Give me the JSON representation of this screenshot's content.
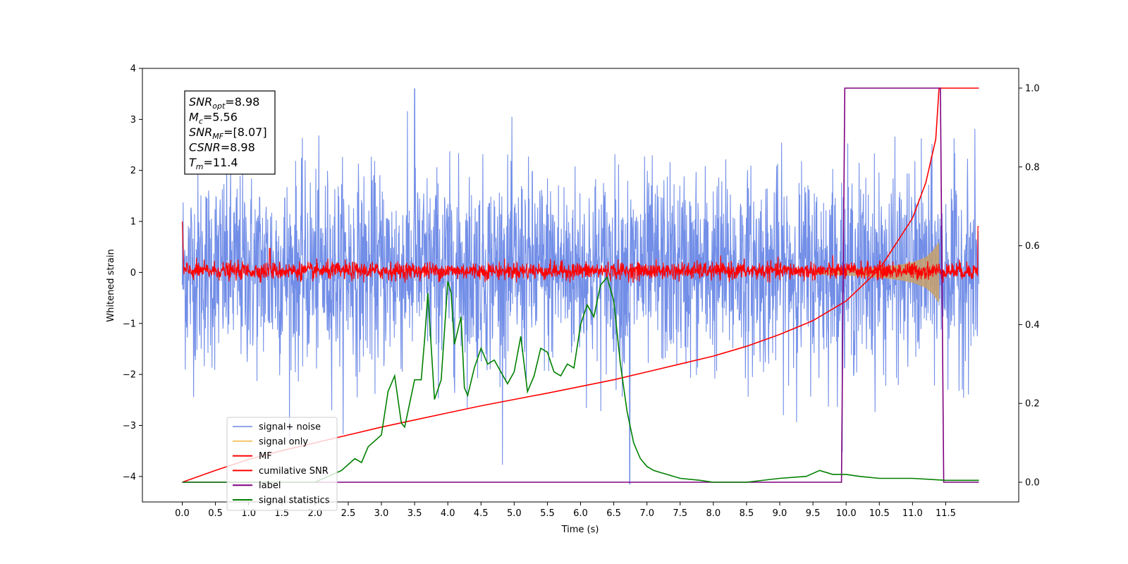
{
  "chart_data": {
    "type": "line",
    "xlabel": "Time (s)",
    "ylabel": "Whitened strain",
    "xlim": [
      -0.6,
      12.6
    ],
    "ylim": [
      -4.5,
      4.0
    ],
    "y2lim": [
      -0.05,
      1.05
    ],
    "x_ticks": [
      0.0,
      0.5,
      1.0,
      1.5,
      2.0,
      2.5,
      3.0,
      3.5,
      4.0,
      4.5,
      5.0,
      5.5,
      6.0,
      6.5,
      7.0,
      7.5,
      8.0,
      8.5,
      9.0,
      9.5,
      10.0,
      10.5,
      11.0,
      11.5
    ],
    "x_tick_labels": [
      "0.0",
      "0.5",
      "1.0",
      "1.5",
      "2.0",
      "2.5",
      "3.0",
      "3.5",
      "4.0",
      "4.5",
      "5.0",
      "5.5",
      "6.0",
      "6.5",
      "7.0",
      "7.5",
      "8.0",
      "8.5",
      "9.0",
      "9.5",
      "10.0",
      "10.5",
      "11.0",
      "11.5"
    ],
    "y_ticks": [
      4,
      3,
      2,
      1,
      0,
      -1,
      -2,
      -3,
      -4
    ],
    "y_tick_labels": [
      "4",
      "3",
      "2",
      "1",
      "0",
      "−1",
      "−2",
      "−3",
      "−4"
    ],
    "y2_ticks": [
      1.0,
      0.8,
      0.6,
      0.4,
      0.2,
      0.0
    ],
    "y2_tick_labels": [
      "1.0",
      "0.8",
      "0.6",
      "0.4",
      "0.2",
      "0.0"
    ],
    "legend_position": "lower-left",
    "series": [
      {
        "name": "signal+ noise",
        "axis": "left",
        "color": "#6a88e6",
        "description_values": {
          "x_range": [
            0.0,
            12.0
          ],
          "typical_range": [
            -2.0,
            2.2
          ],
          "max_excursion": 3.6,
          "min_excursion": -4.15
        }
      },
      {
        "name": "signal only",
        "axis": "left",
        "color": "#f5c56a",
        "envelope": {
          "x": [
            9.5,
            10.0,
            10.5,
            10.8,
            11.0,
            11.2,
            11.3,
            11.4
          ],
          "amplitude": [
            0.04,
            0.06,
            0.1,
            0.15,
            0.2,
            0.3,
            0.42,
            0.6
          ]
        }
      },
      {
        "name": "MF",
        "axis": "left",
        "color": "#ff0000",
        "description_values": {
          "x_range": [
            0.0,
            12.0
          ],
          "typical_range": [
            -0.2,
            0.25
          ],
          "start_value": 1.0,
          "end_value": 0.9,
          "peak": 0.47
        }
      },
      {
        "name": "cumilative SNR",
        "axis": "right",
        "color": "#ff0000",
        "x": [
          0.0,
          0.5,
          1.0,
          1.5,
          2.0,
          2.5,
          3.0,
          3.5,
          4.0,
          4.5,
          5.0,
          5.5,
          6.0,
          6.5,
          7.0,
          7.5,
          8.0,
          8.5,
          9.0,
          9.5,
          10.0,
          10.5,
          11.0,
          11.2,
          11.35,
          11.4,
          11.5,
          12.0
        ],
        "values": [
          0.0,
          0.03,
          0.058,
          0.08,
          0.1,
          0.12,
          0.14,
          0.158,
          0.176,
          0.194,
          0.21,
          0.226,
          0.243,
          0.26,
          0.28,
          0.3,
          0.32,
          0.345,
          0.375,
          0.41,
          0.46,
          0.54,
          0.67,
          0.76,
          0.87,
          1.0,
          1.0,
          1.0
        ]
      },
      {
        "name": "label",
        "axis": "right",
        "color": "#800080",
        "x": [
          0.0,
          9.93,
          9.98,
          11.42,
          11.47,
          12.0
        ],
        "values": [
          0.0,
          0.0,
          1.0,
          1.0,
          0.0,
          0.0
        ]
      },
      {
        "name": "signal statistics",
        "axis": "right",
        "color": "#008000",
        "x": [
          0.0,
          1.0,
          2.0,
          2.4,
          2.6,
          2.7,
          2.8,
          3.0,
          3.1,
          3.2,
          3.3,
          3.35,
          3.5,
          3.6,
          3.65,
          3.7,
          3.8,
          3.9,
          4.0,
          4.05,
          4.1,
          4.2,
          4.25,
          4.3,
          4.4,
          4.5,
          4.6,
          4.7,
          4.8,
          4.9,
          5.0,
          5.1,
          5.2,
          5.3,
          5.4,
          5.5,
          5.6,
          5.7,
          5.8,
          5.9,
          6.0,
          6.1,
          6.2,
          6.3,
          6.4,
          6.5,
          6.6,
          6.7,
          6.8,
          6.9,
          7.0,
          7.1,
          7.2,
          7.3,
          7.5,
          7.8,
          8.0,
          8.5,
          9.0,
          9.4,
          9.6,
          9.8,
          10.0,
          10.2,
          10.5,
          11.0,
          11.5,
          12.0
        ],
        "values": [
          0.0,
          0.0,
          0.0,
          0.03,
          0.06,
          0.05,
          0.09,
          0.12,
          0.23,
          0.27,
          0.15,
          0.14,
          0.26,
          0.26,
          0.36,
          0.48,
          0.21,
          0.26,
          0.51,
          0.48,
          0.35,
          0.42,
          0.24,
          0.22,
          0.29,
          0.34,
          0.3,
          0.31,
          0.28,
          0.25,
          0.28,
          0.37,
          0.23,
          0.27,
          0.34,
          0.33,
          0.28,
          0.27,
          0.3,
          0.29,
          0.4,
          0.45,
          0.42,
          0.5,
          0.52,
          0.46,
          0.3,
          0.18,
          0.1,
          0.06,
          0.04,
          0.03,
          0.025,
          0.02,
          0.01,
          0.005,
          0.0,
          0.0,
          0.01,
          0.015,
          0.03,
          0.02,
          0.02,
          0.015,
          0.01,
          0.01,
          0.005,
          0.005
        ]
      }
    ]
  },
  "annotation": {
    "lines": [
      {
        "sym": "SNR",
        "sub": "opt",
        "value": "=8.98"
      },
      {
        "sym": "M",
        "sub": "c",
        "value": "=5.56"
      },
      {
        "sym": "SNR",
        "sub": "MF",
        "value": "=[8.07]"
      },
      {
        "sym": "CSNR",
        "sub": "",
        "value": "=8.98"
      },
      {
        "sym": "T",
        "sub": "m",
        "value": "=11.4"
      }
    ]
  }
}
